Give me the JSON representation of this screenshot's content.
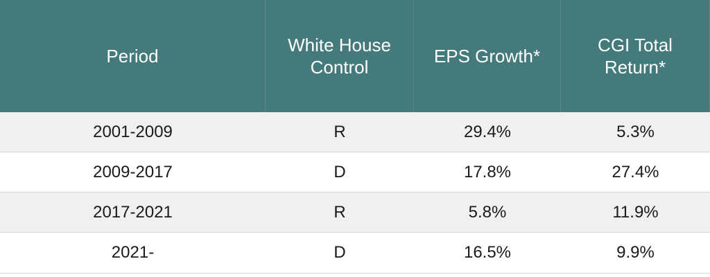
{
  "table": {
    "headers": [
      "Period",
      "White House\nControl",
      "EPS Growth*",
      "CGI Total\nReturn*"
    ],
    "rows": [
      [
        "2001-2009",
        "R",
        "29.4%",
        "5.3%"
      ],
      [
        "2009-2017",
        "D",
        "17.8%",
        "27.4%"
      ],
      [
        "2017-2021",
        "R",
        "5.8%",
        "11.9%"
      ],
      [
        "2021-",
        "D",
        "16.5%",
        "9.9%"
      ]
    ]
  },
  "colors": {
    "header_bg": "#447a7b",
    "header_text": "#ffffff",
    "row_alt_bg": "#f0f0f0",
    "row_bg": "#ffffff"
  }
}
